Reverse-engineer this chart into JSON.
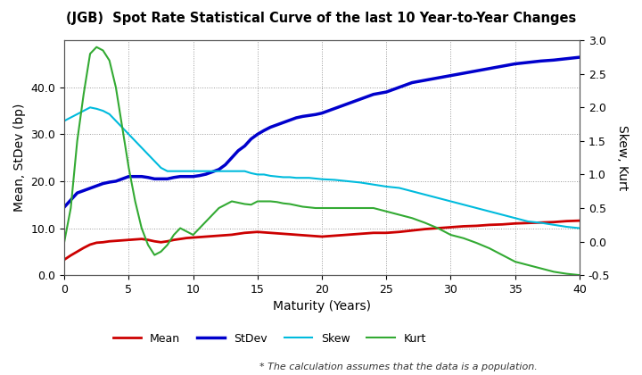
{
  "title": "(JGB)  Spot Rate Statistical Curve of the last 10 Year-to-Year Changes",
  "xlabel": "Maturity (Years)",
  "ylabel_left": "Mean, StDev (bp)",
  "ylabel_right": "Skew, Kurt",
  "footnote": "* The calculation assumes that the data is a population.",
  "xlim": [
    0,
    40
  ],
  "ylim_left": [
    0.0,
    50.0
  ],
  "ylim_right": [
    -0.5,
    3.0
  ],
  "xticks": [
    0,
    5,
    10,
    15,
    20,
    25,
    30,
    35,
    40
  ],
  "yticks_left": [
    0.0,
    10.0,
    20.0,
    30.0,
    40.0
  ],
  "yticks_right": [
    -0.5,
    0.0,
    0.5,
    1.0,
    1.5,
    2.0,
    2.5,
    3.0
  ],
  "maturity": [
    0,
    0.5,
    1,
    1.5,
    2,
    2.5,
    3,
    3.5,
    4,
    4.5,
    5,
    5.5,
    6,
    6.5,
    7,
    7.5,
    8,
    8.5,
    9,
    9.5,
    10,
    10.5,
    11,
    11.5,
    12,
    12.5,
    13,
    13.5,
    14,
    14.5,
    15,
    15.5,
    16,
    16.5,
    17,
    17.5,
    18,
    18.5,
    19,
    19.5,
    20,
    21,
    22,
    23,
    24,
    25,
    26,
    27,
    28,
    29,
    30,
    31,
    32,
    33,
    34,
    35,
    36,
    37,
    38,
    39,
    40
  ],
  "mean": [
    3.3,
    4.2,
    5.0,
    5.8,
    6.5,
    6.9,
    7.0,
    7.2,
    7.3,
    7.4,
    7.5,
    7.6,
    7.7,
    7.5,
    7.2,
    7.0,
    7.2,
    7.5,
    7.7,
    7.9,
    8.0,
    8.1,
    8.2,
    8.3,
    8.4,
    8.5,
    8.6,
    8.8,
    9.0,
    9.1,
    9.2,
    9.1,
    9.0,
    8.9,
    8.8,
    8.7,
    8.6,
    8.5,
    8.4,
    8.3,
    8.2,
    8.4,
    8.6,
    8.8,
    9.0,
    9.0,
    9.2,
    9.5,
    9.8,
    10.0,
    10.2,
    10.4,
    10.5,
    10.7,
    10.8,
    11.0,
    11.1,
    11.2,
    11.3,
    11.5,
    11.6
  ],
  "stdev": [
    14.5,
    16.0,
    17.5,
    18.0,
    18.5,
    19.0,
    19.5,
    19.8,
    20.0,
    20.5,
    21.0,
    21.0,
    21.0,
    20.8,
    20.5,
    20.5,
    20.5,
    20.8,
    21.0,
    21.0,
    21.0,
    21.2,
    21.5,
    22.0,
    22.5,
    23.5,
    25.0,
    26.5,
    27.5,
    29.0,
    30.0,
    30.8,
    31.5,
    32.0,
    32.5,
    33.0,
    33.5,
    33.8,
    34.0,
    34.2,
    34.5,
    35.5,
    36.5,
    37.5,
    38.5,
    39.0,
    40.0,
    41.0,
    41.5,
    42.0,
    42.5,
    43.0,
    43.5,
    44.0,
    44.5,
    45.0,
    45.3,
    45.6,
    45.8,
    46.1,
    46.4
  ],
  "skew": [
    1.8,
    1.85,
    1.9,
    1.95,
    2.0,
    1.98,
    1.95,
    1.9,
    1.8,
    1.7,
    1.6,
    1.5,
    1.4,
    1.3,
    1.2,
    1.1,
    1.05,
    1.05,
    1.05,
    1.05,
    1.05,
    1.05,
    1.05,
    1.05,
    1.05,
    1.05,
    1.05,
    1.05,
    1.05,
    1.02,
    1.0,
    1.0,
    0.98,
    0.97,
    0.96,
    0.96,
    0.95,
    0.95,
    0.95,
    0.94,
    0.93,
    0.92,
    0.9,
    0.88,
    0.85,
    0.82,
    0.8,
    0.75,
    0.7,
    0.65,
    0.6,
    0.55,
    0.5,
    0.45,
    0.4,
    0.35,
    0.3,
    0.28,
    0.25,
    0.22,
    0.2
  ],
  "kurt": [
    0.0,
    0.5,
    1.5,
    2.2,
    2.8,
    2.9,
    2.85,
    2.7,
    2.3,
    1.7,
    1.1,
    0.6,
    0.2,
    -0.05,
    -0.2,
    -0.15,
    -0.05,
    0.1,
    0.2,
    0.15,
    0.1,
    0.2,
    0.3,
    0.4,
    0.5,
    0.55,
    0.6,
    0.58,
    0.56,
    0.55,
    0.6,
    0.6,
    0.6,
    0.59,
    0.57,
    0.56,
    0.54,
    0.52,
    0.51,
    0.5,
    0.5,
    0.5,
    0.5,
    0.5,
    0.5,
    0.45,
    0.4,
    0.35,
    0.28,
    0.2,
    0.1,
    0.05,
    -0.02,
    -0.1,
    -0.2,
    -0.3,
    -0.35,
    -0.4,
    -0.45,
    -0.48,
    -0.5
  ],
  "mean_color": "#cc0000",
  "stdev_color": "#0000cc",
  "skew_color": "#00bbdd",
  "kurt_color": "#33aa33",
  "background_color": "#ffffff",
  "grid_color": "#999999",
  "legend_labels": [
    "Mean",
    "StDev",
    "Skew",
    "Kurt"
  ]
}
